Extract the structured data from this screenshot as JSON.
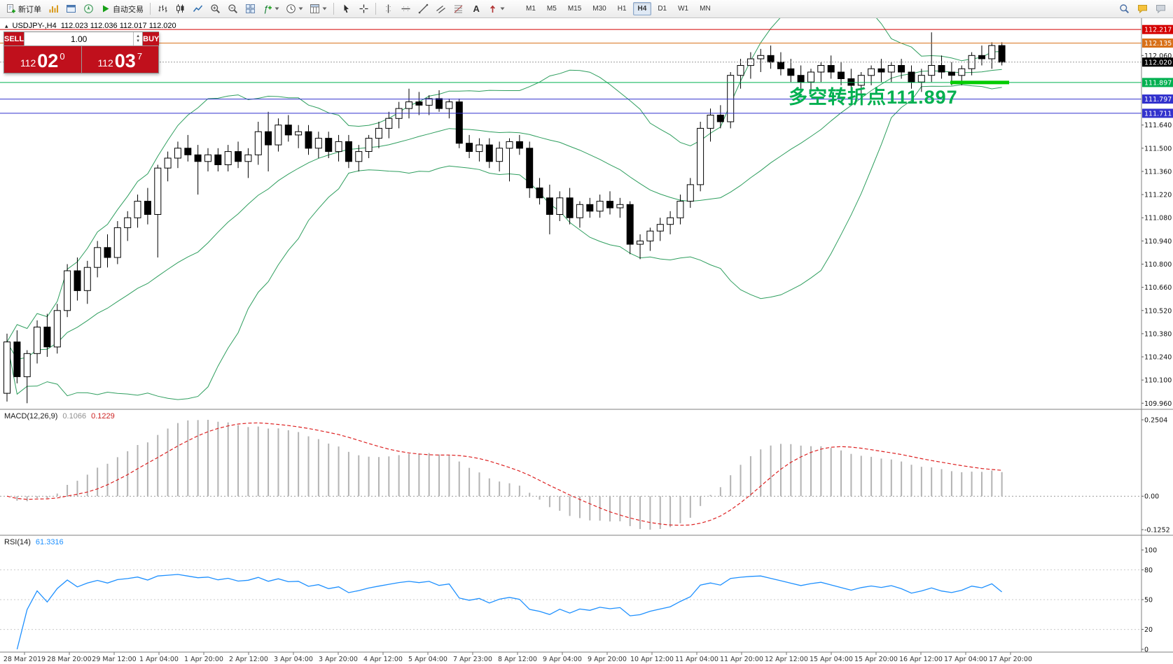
{
  "toolbar": {
    "new_order_label": "新订单",
    "autotrading_label": "自动交易",
    "timeframes": [
      "M1",
      "M5",
      "M15",
      "M30",
      "H1",
      "H4",
      "D1",
      "W1",
      "MN"
    ],
    "active_timeframe": "H4",
    "icons": {
      "new_order": "page-plus",
      "market_watch": "gold-bars",
      "data_window": "panel-window",
      "navigator": "compass",
      "autotrading": "green-play",
      "bar_chart": "ohlc-bars",
      "candlestick": "candles",
      "line_chart": "zigzag",
      "zoom_in": "magnifier-plus",
      "zoom_out": "magnifier-minus",
      "tile_windows": "window-grid",
      "indicators": "fx-plus",
      "periods": "clock",
      "templates": "grid-palette",
      "cursor": "arrow-pointer",
      "crosshair": "cross",
      "vline": "vertical-line",
      "hline": "horizontal-line",
      "trendline": "diagonal-line",
      "channel": "parallel-lines",
      "fibonacci": "fib-lines",
      "text_tool": "letter-A",
      "arrows_tool": "red-arrow",
      "search": "magnifier",
      "community": "chat-bubbles"
    }
  },
  "chart_header": {
    "collapse_icon": "▴",
    "symbol": "USDJPY-,H4",
    "ohlc": "112.023 112.036 112.017 112.020"
  },
  "trade_panel": {
    "sell_label": "SELL",
    "buy_label": "BUY",
    "volume": "1.00",
    "sell_price": {
      "big": "112",
      "pips": "02",
      "sup": "0"
    },
    "buy_price": {
      "big": "112",
      "pips": "03",
      "sup": "7"
    }
  },
  "annotation": {
    "text": "多空转折点111.897",
    "color": "#00b050"
  },
  "price_axis": {
    "gridline_labels": [
      "112.060",
      "111.640",
      "111.500",
      "111.360",
      "111.220",
      "111.080",
      "110.940",
      "110.800",
      "110.660",
      "110.520",
      "110.380",
      "110.240",
      "110.100",
      "109.960"
    ],
    "level_markers": [
      {
        "label": "112.217",
        "price": 112.217,
        "color": "#d40000"
      },
      {
        "label": "112.135",
        "price": 112.135,
        "color": "#d87018"
      },
      {
        "label": "112.020",
        "price": 112.02,
        "color": "#000000",
        "current": true
      },
      {
        "label": "111.897",
        "price": 111.897,
        "color": "#00b050"
      },
      {
        "label": "111.797",
        "price": 111.797,
        "color": "#3232cd"
      },
      {
        "label": "111.711",
        "price": 111.711,
        "color": "#3232cd"
      }
    ]
  },
  "time_axis": {
    "labels": [
      "28 Mar 2019",
      "28 Mar 20:00",
      "29 Mar 12:00",
      "1 Apr 04:00",
      "1 Apr 20:00",
      "2 Apr 12:00",
      "3 Apr 04:00",
      "3 Apr 20:00",
      "4 Apr 12:00",
      "5 Apr 04:00",
      "7 Apr 23:00",
      "8 Apr 12:00",
      "9 Apr 04:00",
      "9 Apr 20:00",
      "10 Apr 12:00",
      "11 Apr 04:00",
      "11 Apr 20:00",
      "12 Apr 12:00",
      "15 Apr 04:00",
      "15 Apr 20:00",
      "16 Apr 12:00",
      "17 Apr 04:00",
      "17 Apr 20:00"
    ]
  },
  "macd_panel": {
    "name": "MACD(12,26,9)",
    "value_main": "0.1066",
    "value_signal": "0.1229",
    "scale_labels": [
      "0.2504",
      "0.00",
      "-0.1252"
    ]
  },
  "rsi_panel": {
    "name": "RSI(14)",
    "value": "61.3316",
    "scale_labels": [
      "100",
      "80",
      "50",
      "20",
      "0"
    ],
    "levels": [
      80,
      50,
      20
    ]
  },
  "chart_data": {
    "type": "candlestick",
    "symbol": "USDJPY",
    "timeframe": "H4",
    "price_range": [
      109.94,
      112.26
    ],
    "indicators": {
      "bollinger": {
        "period": 20,
        "deviation": 2,
        "color": "#2e9e5e"
      },
      "macd": {
        "fast": 12,
        "slow": 26,
        "signal": 9,
        "current_histogram": 0.1066,
        "current_signal": 0.1229
      },
      "rsi": {
        "period": 14,
        "current": 61.3316
      }
    },
    "objects": {
      "horizontal_lines": [
        112.217,
        112.135,
        111.897,
        111.797,
        111.711
      ],
      "bid_price": 112.02,
      "thick_segment": {
        "price": 111.897,
        "color": "#00cc00"
      }
    },
    "ohlc": [
      [
        110.02,
        110.38,
        109.97,
        110.33
      ],
      [
        110.33,
        110.4,
        110.08,
        110.12
      ],
      [
        110.12,
        110.28,
        109.96,
        110.26
      ],
      [
        110.26,
        110.46,
        110.2,
        110.42
      ],
      [
        110.42,
        110.5,
        110.24,
        110.3
      ],
      [
        110.3,
        110.56,
        110.26,
        110.52
      ],
      [
        110.52,
        110.8,
        110.48,
        110.76
      ],
      [
        110.76,
        110.84,
        110.58,
        110.64
      ],
      [
        110.64,
        110.82,
        110.56,
        110.78
      ],
      [
        110.78,
        110.94,
        110.72,
        110.9
      ],
      [
        110.9,
        110.98,
        110.78,
        110.84
      ],
      [
        110.84,
        111.06,
        110.8,
        111.02
      ],
      [
        111.02,
        111.12,
        110.94,
        111.08
      ],
      [
        111.08,
        111.22,
        111.02,
        111.18
      ],
      [
        111.18,
        111.26,
        111.04,
        111.1
      ],
      [
        111.1,
        111.4,
        110.84,
        111.38
      ],
      [
        111.38,
        111.48,
        111.3,
        111.44
      ],
      [
        111.44,
        111.54,
        111.38,
        111.5
      ],
      [
        111.5,
        111.58,
        111.42,
        111.46
      ],
      [
        111.46,
        111.52,
        111.22,
        111.42
      ],
      [
        111.42,
        111.5,
        111.36,
        111.46
      ],
      [
        111.46,
        111.5,
        111.36,
        111.4
      ],
      [
        111.4,
        111.52,
        111.36,
        111.48
      ],
      [
        111.48,
        111.54,
        111.38,
        111.42
      ],
      [
        111.42,
        111.5,
        111.32,
        111.46
      ],
      [
        111.46,
        111.66,
        111.4,
        111.6
      ],
      [
        111.6,
        111.72,
        111.36,
        111.52
      ],
      [
        111.52,
        111.68,
        111.48,
        111.64
      ],
      [
        111.64,
        111.7,
        111.54,
        111.58
      ],
      [
        111.58,
        111.64,
        111.5,
        111.6
      ],
      [
        111.6,
        111.64,
        111.46,
        111.5
      ],
      [
        111.5,
        111.6,
        111.44,
        111.56
      ],
      [
        111.56,
        111.6,
        111.44,
        111.48
      ],
      [
        111.48,
        111.58,
        111.42,
        111.54
      ],
      [
        111.54,
        111.58,
        111.38,
        111.42
      ],
      [
        111.42,
        111.52,
        111.36,
        111.48
      ],
      [
        111.48,
        111.58,
        111.44,
        111.56
      ],
      [
        111.56,
        111.66,
        111.5,
        111.62
      ],
      [
        111.62,
        111.72,
        111.56,
        111.68
      ],
      [
        111.68,
        111.78,
        111.62,
        111.74
      ],
      [
        111.74,
        111.86,
        111.68,
        111.78
      ],
      [
        111.78,
        111.84,
        111.7,
        111.76
      ],
      [
        111.76,
        111.82,
        111.7,
        111.8
      ],
      [
        111.8,
        111.85,
        111.72,
        111.74
      ],
      [
        111.74,
        111.8,
        111.68,
        111.78
      ],
      [
        111.78,
        111.8,
        111.5,
        111.53
      ],
      [
        111.53,
        111.58,
        111.44,
        111.48
      ],
      [
        111.48,
        111.56,
        111.42,
        111.52
      ],
      [
        111.52,
        111.56,
        111.38,
        111.42
      ],
      [
        111.42,
        111.54,
        111.36,
        111.5
      ],
      [
        111.5,
        111.56,
        111.3,
        111.54
      ],
      [
        111.54,
        111.58,
        111.46,
        111.5
      ],
      [
        111.5,
        111.54,
        111.2,
        111.26
      ],
      [
        111.26,
        111.32,
        111.16,
        111.2
      ],
      [
        111.2,
        111.28,
        110.98,
        111.1
      ],
      [
        111.1,
        111.24,
        111.06,
        111.2
      ],
      [
        111.2,
        111.26,
        111.04,
        111.08
      ],
      [
        111.08,
        111.18,
        111.02,
        111.16
      ],
      [
        111.16,
        111.2,
        111.08,
        111.12
      ],
      [
        111.12,
        111.22,
        111.08,
        111.18
      ],
      [
        111.18,
        111.24,
        111.1,
        111.14
      ],
      [
        111.14,
        111.2,
        111.08,
        111.16
      ],
      [
        111.16,
        111.18,
        110.86,
        110.92
      ],
      [
        110.92,
        110.98,
        110.83,
        110.94
      ],
      [
        110.94,
        111.02,
        110.88,
        111.0
      ],
      [
        111.0,
        111.08,
        110.94,
        111.04
      ],
      [
        111.04,
        111.12,
        110.98,
        111.08
      ],
      [
        111.08,
        111.22,
        111.04,
        111.18
      ],
      [
        111.18,
        111.32,
        111.14,
        111.28
      ],
      [
        111.28,
        111.66,
        111.24,
        111.62
      ],
      [
        111.62,
        111.74,
        111.54,
        111.7
      ],
      [
        111.7,
        111.76,
        111.62,
        111.66
      ],
      [
        111.66,
        111.96,
        111.62,
        111.94
      ],
      [
        111.94,
        112.04,
        111.86,
        112.0
      ],
      [
        112.0,
        112.08,
        111.92,
        112.04
      ],
      [
        112.04,
        112.1,
        111.96,
        112.06
      ],
      [
        112.06,
        112.12,
        111.98,
        112.02
      ],
      [
        112.02,
        112.08,
        111.94,
        111.98
      ],
      [
        111.98,
        112.04,
        111.9,
        111.94
      ],
      [
        111.94,
        112.0,
        111.86,
        111.9
      ],
      [
        111.9,
        111.98,
        111.84,
        111.96
      ],
      [
        111.96,
        112.02,
        111.9,
        112.0
      ],
      [
        112.0,
        112.06,
        111.92,
        111.96
      ],
      [
        111.96,
        112.02,
        111.88,
        111.92
      ],
      [
        111.92,
        111.98,
        111.84,
        111.88
      ],
      [
        111.88,
        111.96,
        111.82,
        111.94
      ],
      [
        111.94,
        112.0,
        111.88,
        111.98
      ],
      [
        111.98,
        112.04,
        111.9,
        111.96
      ],
      [
        111.96,
        112.02,
        111.9,
        112.0
      ],
      [
        112.0,
        112.04,
        111.92,
        111.96
      ],
      [
        111.96,
        112.0,
        111.86,
        111.9
      ],
      [
        111.9,
        111.98,
        111.84,
        111.94
      ],
      [
        111.94,
        112.2,
        111.9,
        112.0
      ],
      [
        112.0,
        112.06,
        111.92,
        111.96
      ],
      [
        111.96,
        112.02,
        111.88,
        111.94
      ],
      [
        111.94,
        112.0,
        111.88,
        111.98
      ],
      [
        111.98,
        112.08,
        111.94,
        112.06
      ],
      [
        112.06,
        112.12,
        112.0,
        112.04
      ],
      [
        112.04,
        112.14,
        111.98,
        112.12
      ],
      [
        112.12,
        112.14,
        112.0,
        112.02
      ]
    ]
  }
}
